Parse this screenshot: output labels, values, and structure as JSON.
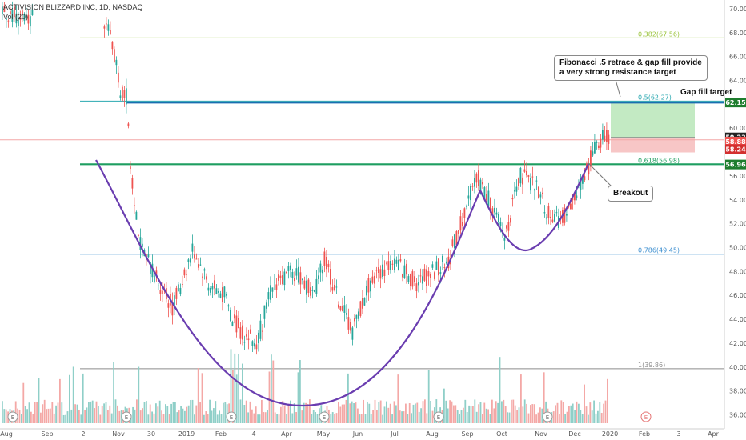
{
  "header": {
    "symbol_line": "ACTIVISION BLIZZARD INC, 1D, NASDAQ",
    "volume_line": "Vol (20)"
  },
  "annotations": {
    "fib_note_line1": "Fibonacci .5 retrace & gap fill provide",
    "fib_note_line2": "a very strong resistance target",
    "breakout": "Breakout",
    "gap_fill": "Gap fill target"
  },
  "earnings_marker": "E",
  "colors": {
    "up": "#26a69a",
    "down": "#ef5350",
    "curve": "#6a3db0",
    "support": "#138d2b",
    "gap": "#1a6fb0",
    "target_zone": "#b9e6b9",
    "stop_zone": "#f6c0c0"
  },
  "chart_data": {
    "type": "candlestick",
    "x_ticks": [
      "Aug",
      "Sep",
      "2",
      "Nov",
      "30",
      "2019",
      "Feb",
      "4",
      "Apr",
      "May",
      "Jun",
      "Jul",
      "Aug",
      "Sep",
      "Oct",
      "Nov",
      "Dec",
      "2020",
      "Feb",
      "3",
      "Apr"
    ],
    "y_ticks": [
      36,
      38,
      40,
      42,
      44,
      46,
      48,
      50,
      52,
      54,
      56,
      58,
      60,
      62,
      64,
      66,
      68,
      70
    ],
    "ylim": [
      35.3,
      71
    ],
    "fib_levels": [
      {
        "label": "0.382(67.56)",
        "value": 67.56,
        "color": "#9bc43c"
      },
      {
        "label": "0.5(62.27)",
        "value": 62.27,
        "color": "#2aa8b0"
      },
      {
        "label": "0.618(56.98)",
        "value": 56.98,
        "color": "#1e9e60"
      },
      {
        "label": "0.786(49.45)",
        "value": 49.45,
        "color": "#3d8fd0"
      },
      {
        "label": "1(39.86)",
        "value": 39.86,
        "color": "#8c8c8c"
      }
    ],
    "price_badges": [
      {
        "text": "62.15",
        "value": 62.15,
        "color": "#1e7d2e"
      },
      {
        "text": "59.23",
        "value": 59.23,
        "color": "#222222"
      },
      {
        "text": "58.88",
        "value": 58.88,
        "color": "#ef5350"
      },
      {
        "text": "58.24",
        "value": 58.24,
        "color": "#d32f2f"
      },
      {
        "text": "56.96",
        "value": 56.96,
        "color": "#1e7d2e"
      }
    ],
    "gap_fill_level": 62.15,
    "support_level": 56.96,
    "stop_level": 58.24,
    "entry_level": 59.23,
    "earnings_count": 8
  }
}
